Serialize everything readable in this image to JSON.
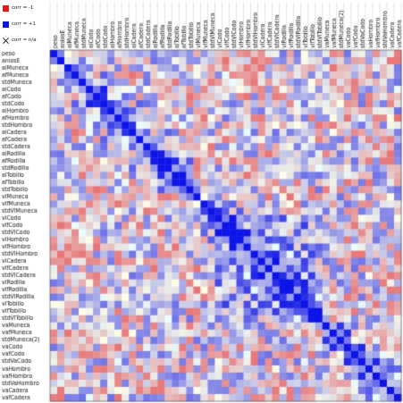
{
  "legend": {
    "negative": {
      "label": "corr = -1",
      "color": "#e8181a"
    },
    "positive": {
      "label": "corr = +1",
      "color": "#0d14e8"
    },
    "na": {
      "label": "corr = n/a"
    }
  },
  "chart_data": {
    "type": "heatmap",
    "variables": [
      "peso",
      "aniosE",
      "alMuneca",
      "afMuneca",
      "stdMuneca",
      "alCodo",
      "afCodo",
      "stdCodo",
      "alHombro",
      "afHombro",
      "stdHombro",
      "alCadera",
      "afCadera",
      "stdCadera",
      "alRodilla",
      "afRodilla",
      "stdRodilla",
      "alTobillo",
      "afTobillo",
      "stdTobillo",
      "vlMuneca",
      "vlfMuneca",
      "stdVlMuneca",
      "vlCodo",
      "vlfCodo",
      "stdVlCodo",
      "vlHombro",
      "vlfHombro",
      "stdVlHombro",
      "vlCadera",
      "vlfCadera",
      "stdVlCadera",
      "vlRodilla",
      "vlfRodilla",
      "stdVlRodilla",
      "vlTobillo",
      "vlfTobillo",
      "stdVlTobillo",
      "vaMuneca",
      "vafMuneca",
      "stdMuneca(2)",
      "vaCodo",
      "vafCodo",
      "stdVaCodo",
      "vaHombro",
      "vafHombro",
      "stdVaHombro",
      "vaCadera",
      "vafCadera"
    ],
    "value_range": [
      -1,
      1
    ],
    "correlation_matrix": [],
    "diagonal": 1.0,
    "xlabel": "",
    "ylabel": ""
  }
}
